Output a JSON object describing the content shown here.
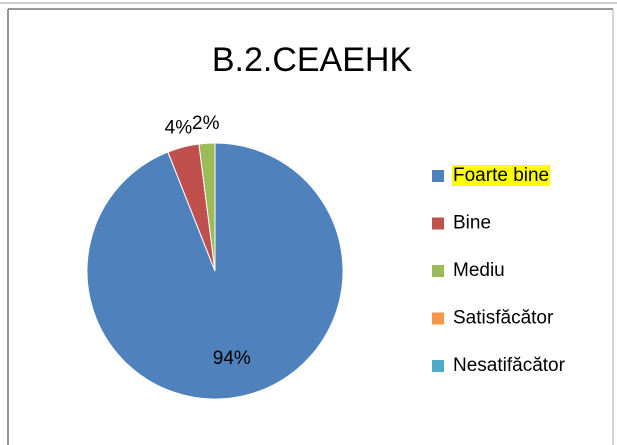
{
  "chart_data": {
    "type": "pie",
    "title": "B.2.CEAEHK",
    "categories": [
      "Foarte bine",
      "Bine",
      "Mediu",
      "Satisfăcător",
      "Nesatifăcător"
    ],
    "values": [
      94,
      4,
      2,
      0,
      0
    ],
    "value_labels": [
      "94%",
      "4%",
      "2%",
      null,
      null
    ],
    "colors": [
      "#4f81bd",
      "#c0504d",
      "#9bbb59",
      "#f79646",
      "#4bacc6"
    ],
    "legend": "right",
    "legend_highlight": [
      true,
      false,
      false,
      false,
      false
    ],
    "legend_highlight_color": "#ffff00"
  }
}
